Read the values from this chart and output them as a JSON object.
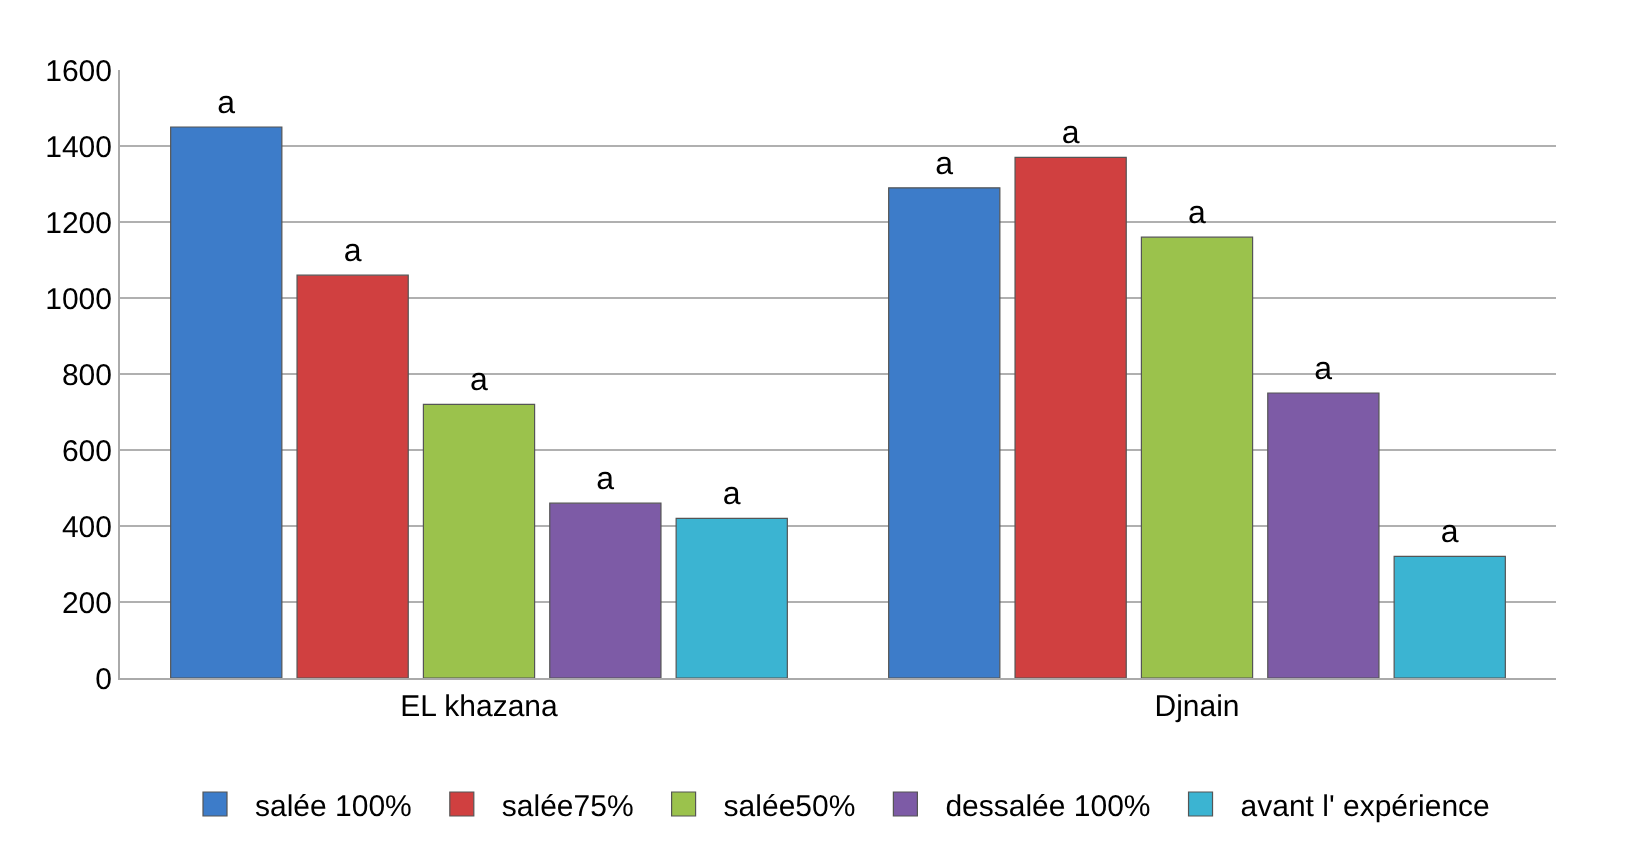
{
  "chart_data": {
    "type": "bar",
    "categories": [
      "EL khazana",
      "Djnain"
    ],
    "series": [
      {
        "name": "salée 100%",
        "color": "#3d7cc9",
        "values": [
          1450,
          1290
        ],
        "value_labels": [
          "a",
          "a"
        ]
      },
      {
        "name": "salée75%",
        "color": "#d04040",
        "values": [
          1060,
          1370
        ],
        "value_labels": [
          "a",
          "a"
        ]
      },
      {
        "name": "salée50%",
        "color": "#9bc24c",
        "values": [
          720,
          1160
        ],
        "value_labels": [
          "a",
          "a"
        ]
      },
      {
        "name": "dessalée 100%",
        "color": "#7d5ba6",
        "values": [
          460,
          750
        ],
        "value_labels": [
          "a",
          "a"
        ]
      },
      {
        "name": "avant l' expérience",
        "color": "#3bb4d2",
        "values": [
          420,
          320
        ],
        "value_labels": [
          "a",
          "a"
        ]
      }
    ],
    "ylim": [
      0,
      1600
    ],
    "yticks": [
      0,
      200,
      400,
      600,
      800,
      1000,
      1200,
      1400,
      1600
    ],
    "grid": "y",
    "legend": "bottom"
  }
}
